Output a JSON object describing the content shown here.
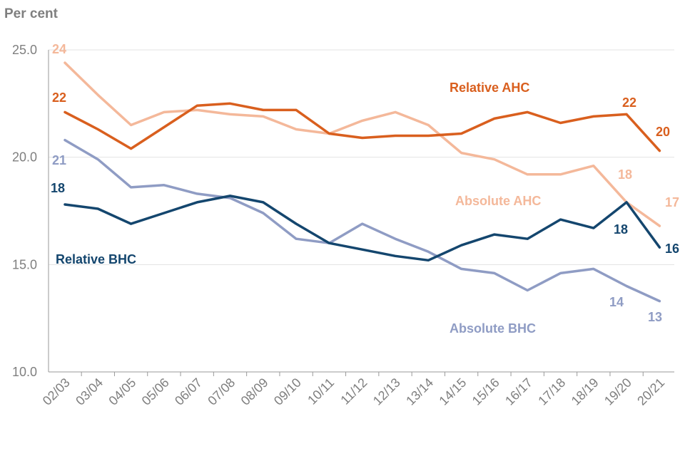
{
  "chart_data": {
    "type": "line",
    "ylabel": "Per cent",
    "xlabel": "",
    "ylim": [
      10,
      25
    ],
    "yticks": [
      "10.0",
      "15.0",
      "20.0",
      "25.0"
    ],
    "ytick_values": [
      10,
      15,
      20,
      25
    ],
    "grid": true,
    "categories": [
      "02/03",
      "03/04",
      "04/05",
      "05/06",
      "06/07",
      "07/08",
      "08/09",
      "09/10",
      "10/11",
      "11/12",
      "12/13",
      "13/14",
      "14/15",
      "15/16",
      "16/17",
      "17/18",
      "18/19",
      "19/20",
      "20/21"
    ],
    "series": [
      {
        "name": "Absolute AHC",
        "color": "#f4b89a",
        "values": [
          24.4,
          22.9,
          21.5,
          22.1,
          22.2,
          22.0,
          21.9,
          21.3,
          21.1,
          21.7,
          22.1,
          21.5,
          20.2,
          19.9,
          19.2,
          19.2,
          19.6,
          17.9,
          16.8
        ],
        "end_labels": [
          {
            "index": 0,
            "text": "24"
          },
          {
            "index": 17,
            "text": "18"
          },
          {
            "index": 18,
            "text": "17"
          }
        ]
      },
      {
        "name": "Relative AHC",
        "color": "#d95f1e",
        "values": [
          22.1,
          21.3,
          20.4,
          21.4,
          22.4,
          22.5,
          22.2,
          22.2,
          21.1,
          20.9,
          21.0,
          21.0,
          21.1,
          21.8,
          22.1,
          21.6,
          21.9,
          22.0,
          20.3
        ],
        "end_labels": [
          {
            "index": 0,
            "text": "22"
          },
          {
            "index": 17,
            "text": "22"
          },
          {
            "index": 18,
            "text": "20"
          }
        ]
      },
      {
        "name": "Absolute BHC",
        "color": "#8f9cc4",
        "values": [
          20.8,
          19.9,
          18.6,
          18.7,
          18.3,
          18.1,
          17.4,
          16.2,
          16.0,
          16.9,
          16.2,
          15.6,
          14.8,
          14.6,
          13.8,
          14.6,
          14.8,
          14.0,
          13.3
        ],
        "end_labels": [
          {
            "index": 0,
            "text": "21"
          },
          {
            "index": 17,
            "text": "14"
          },
          {
            "index": 18,
            "text": "13"
          }
        ]
      },
      {
        "name": "Relative BHC",
        "color": "#14466e",
        "values": [
          17.8,
          17.6,
          16.9,
          17.4,
          17.9,
          18.2,
          17.9,
          16.9,
          16.0,
          15.7,
          15.4,
          15.2,
          15.9,
          16.4,
          16.2,
          17.1,
          16.7,
          17.9,
          15.8
        ],
        "end_labels": [
          {
            "index": 0,
            "text": "18"
          },
          {
            "index": 17,
            "text": "18"
          },
          {
            "index": 18,
            "text": "16"
          }
        ]
      }
    ]
  }
}
